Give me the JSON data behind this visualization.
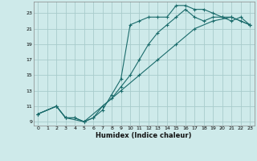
{
  "xlabel": "Humidex (Indice chaleur)",
  "ylabel": "",
  "bg_color": "#ceeaea",
  "grid_color": "#a8cccc",
  "line_color": "#1a6b6b",
  "marker": "+",
  "xlim": [
    -0.5,
    23.5
  ],
  "ylim": [
    8.5,
    24.5
  ],
  "xticks": [
    0,
    1,
    2,
    3,
    4,
    5,
    6,
    7,
    8,
    9,
    10,
    11,
    12,
    13,
    14,
    15,
    16,
    17,
    18,
    19,
    20,
    21,
    22,
    23
  ],
  "yticks": [
    9,
    11,
    13,
    15,
    17,
    19,
    21,
    23
  ],
  "line1_x": [
    0,
    2,
    3,
    4,
    5,
    6,
    7,
    8,
    9,
    10,
    11,
    12,
    13,
    14,
    15,
    16,
    17,
    18,
    19,
    20,
    21,
    22,
    23
  ],
  "line1_y": [
    10,
    11,
    9.5,
    9.5,
    9,
    9.5,
    10.5,
    12.5,
    14.5,
    21.5,
    22,
    22.5,
    22.5,
    22.5,
    24,
    24,
    23.5,
    23.5,
    23,
    22.5,
    22.5,
    22,
    21.5
  ],
  "line2_x": [
    0,
    2,
    3,
    4,
    5,
    6,
    7,
    8,
    9,
    10,
    11,
    12,
    13,
    14,
    15,
    16,
    17,
    18,
    19,
    20,
    21,
    22,
    23
  ],
  "line2_y": [
    10,
    11,
    9.5,
    9.5,
    9,
    9.5,
    11,
    12,
    13.5,
    15,
    17,
    19,
    20.5,
    21.5,
    22.5,
    23.5,
    22.5,
    22,
    22.5,
    22.5,
    22,
    22.5,
    21.5
  ],
  "line3_x": [
    0,
    2,
    3,
    5,
    7,
    9,
    11,
    13,
    15,
    17,
    19,
    21,
    23
  ],
  "line3_y": [
    10,
    11,
    9.5,
    9,
    11,
    13,
    15,
    17,
    19,
    21,
    22,
    22.5,
    21.5
  ]
}
